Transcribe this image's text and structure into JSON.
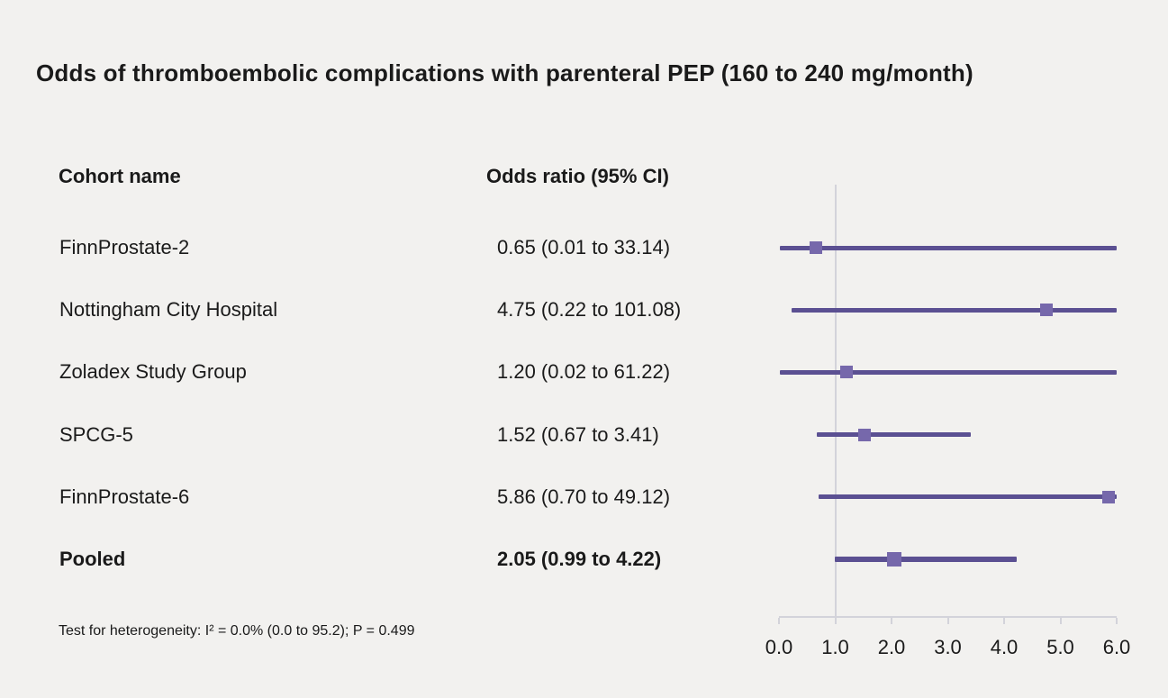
{
  "title": "Odds of thromboembolic complications with parenteral PEP (160 to 240 mg/month)",
  "columns": {
    "cohort": "Cohort name",
    "or": "Odds ratio (95% CI)"
  },
  "footnote": "Test for heterogeneity: I² = 0.0% (0.0 to 95.2); P = 0.499",
  "colors": {
    "background": "#f2f1ef",
    "text": "#1a1a1a",
    "ci_line": "#5b5092",
    "marker": "#7668ab",
    "axis": "#d3d3da"
  },
  "chart_data": {
    "type": "forest",
    "title": "Odds of thromboembolic complications with parenteral PEP (160 to 240 mg/month)",
    "xlim": [
      0.0,
      6.0
    ],
    "x_ticks": [
      "0.0",
      "1.0",
      "2.0",
      "3.0",
      "4.0",
      "5.0",
      "6.0"
    ],
    "x_tick_values": [
      0.0,
      1.0,
      2.0,
      3.0,
      4.0,
      5.0,
      6.0
    ],
    "reference_line": 1.0,
    "rows": [
      {
        "cohort": "FinnProstate-2",
        "or_label": "0.65 (0.01 to 33.14)",
        "or": 0.65,
        "ci_low": 0.01,
        "ci_high": 33.14,
        "bold": false
      },
      {
        "cohort": "Nottingham City Hospital",
        "or_label": "4.75 (0.22 to 101.08)",
        "or": 4.75,
        "ci_low": 0.22,
        "ci_high": 101.08,
        "bold": false
      },
      {
        "cohort": "Zoladex Study Group",
        "or_label": "1.20 (0.02 to 61.22)",
        "or": 1.2,
        "ci_low": 0.02,
        "ci_high": 61.22,
        "bold": false
      },
      {
        "cohort": "SPCG-5",
        "or_label": "1.52 (0.67 to 3.41)",
        "or": 1.52,
        "ci_low": 0.67,
        "ci_high": 3.41,
        "bold": false
      },
      {
        "cohort": "FinnProstate-6",
        "or_label": "5.86 (0.70 to 49.12)",
        "or": 5.86,
        "ci_low": 0.7,
        "ci_high": 49.12,
        "bold": false
      },
      {
        "cohort": "Pooled",
        "or_label": "2.05 (0.99 to 4.22)",
        "or": 2.05,
        "ci_low": 0.99,
        "ci_high": 4.22,
        "bold": true
      }
    ]
  }
}
